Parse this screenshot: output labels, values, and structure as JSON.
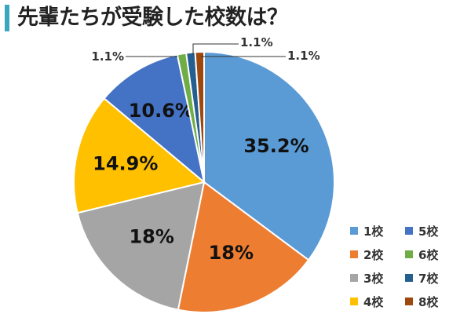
{
  "title": "先輩たちが受験した校数は？",
  "chart_data": {
    "type": "pie",
    "categories": [
      "1校",
      "2校",
      "3校",
      "4校",
      "5校",
      "6校",
      "7校",
      "8校"
    ],
    "values": [
      35.2,
      18,
      18,
      14.9,
      10.6,
      1.1,
      1.1,
      1.1
    ],
    "data_labels": [
      "35.2%",
      "18%",
      "18%",
      "14.9%",
      "10.6%",
      "1.1%",
      "1.1%",
      "1.1%"
    ],
    "colors": [
      "#5b9bd5",
      "#ed7d31",
      "#a5a5a5",
      "#ffc000",
      "#4472c4",
      "#70ad47",
      "#255e91",
      "#9e480e"
    ],
    "legend_placement": "bottom-right",
    "start_angle": "12 o'clock",
    "direction": "clockwise"
  }
}
